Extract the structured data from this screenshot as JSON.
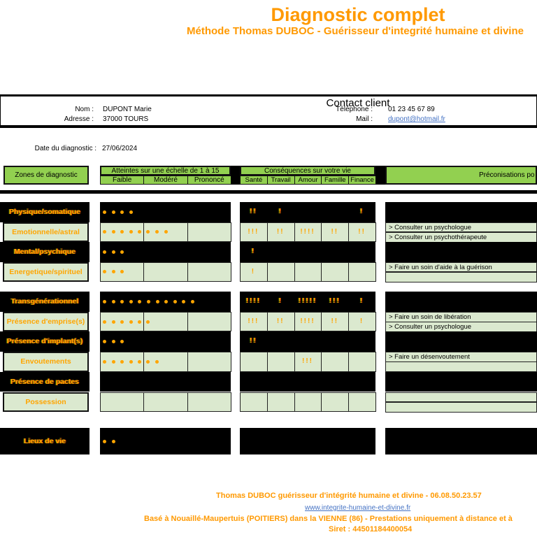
{
  "title": "Diagnostic complet",
  "subtitle": "Méthode Thomas DUBOC - Guérisseur d'integrité humaine et divine",
  "contact": {
    "header": "Contact client",
    "nom_label": "Nom :",
    "nom_value": "DUPONT Marie",
    "adresse_label": "Adresse :",
    "adresse_value": "37000 TOURS",
    "tel_label": "Téléphone :",
    "tel_value": "01 23 45 67 89",
    "mail_label": "Mail :",
    "mail_value": "dupont@hotmail.fr"
  },
  "date_label": "Date du diagnostic :",
  "date_value": "27/06/2024",
  "table": {
    "zones_header": "Zones de diagnostic",
    "scale_header": "Atteintes sur une échelle de 1 à 15",
    "scale_cols": [
      "Faible",
      "Modéré",
      "Prononcé"
    ],
    "consequences_header": "Conséquences sur votre vie",
    "consequence_cols": [
      "Santé",
      "Travail",
      "Amour",
      "Famille",
      "Finance"
    ],
    "precon_header": "Préconisations po"
  },
  "blocks": [
    {
      "rows": [
        {
          "label": "Physique/somatique",
          "style": "black",
          "dots_total": 4,
          "cons": [
            "!!",
            "!",
            "",
            "",
            "!"
          ],
          "precons": null
        },
        {
          "label": "Emotionnelle/astral",
          "style": "green",
          "dots": [
            5,
            3,
            0
          ],
          "cons": [
            "!!!",
            "!!",
            "!!!!",
            "!!",
            "!!"
          ],
          "precons": [
            "> Consulter un psychologue",
            "> Consulter un psychothérapeute"
          ]
        },
        {
          "label": "Mental/psychique",
          "style": "black",
          "dots_total": 3,
          "cons": [
            "!",
            "",
            "",
            "",
            ""
          ],
          "precons": null
        },
        {
          "label": "Energetique/spirituel",
          "style": "green",
          "dots": [
            3,
            0,
            0
          ],
          "cons": [
            "!",
            "",
            "",
            "",
            ""
          ],
          "precons": [
            "> Faire un soin d'aide à la guérison",
            ""
          ]
        }
      ]
    },
    {
      "rows": [
        {
          "label": "Transgénérationnel",
          "style": "black",
          "dots_total": 11,
          "cons": [
            "!!!!",
            "!",
            "!!!!!",
            "!!!",
            "!"
          ],
          "precons": null
        },
        {
          "label": "Présence d'emprise(s)",
          "style": "green",
          "dots": [
            5,
            1,
            0
          ],
          "cons": [
            "!!!",
            "!!",
            "!!!!",
            "!!",
            "!"
          ],
          "precons": [
            "> Faire un soin de libération",
            "> Consulter un psychologue"
          ]
        },
        {
          "label": "Présence d'implant(s)",
          "style": "black",
          "dots_total": 3,
          "cons": [
            "!!",
            "",
            "",
            "",
            ""
          ],
          "precons": null
        },
        {
          "label": "Envoutements",
          "style": "green",
          "dots": [
            5,
            2,
            0
          ],
          "cons": [
            "",
            "",
            "!!!",
            "",
            ""
          ],
          "precons": [
            "> Faire un désenvoutement",
            ""
          ]
        },
        {
          "label": "Présence de pactes",
          "style": "black",
          "dots_total": 0,
          "cons": [
            "",
            "",
            "",
            "",
            ""
          ],
          "precons": null
        },
        {
          "label": "Possession",
          "style": "green",
          "dots": [
            0,
            0,
            0
          ],
          "cons": [
            "",
            "",
            "",
            "",
            ""
          ],
          "precons": [
            "",
            ""
          ]
        }
      ]
    },
    {
      "rows": [
        {
          "label": "Lieux de vie",
          "style": "black",
          "dots_total": 2,
          "cons": [
            "",
            "",
            "",
            "",
            ""
          ],
          "precons": null
        }
      ]
    }
  ],
  "footer": {
    "line1": "Thomas DUBOC guérisseur d'intégrité humaine et divine - 06.08.50.23.57",
    "line2": "www.integrite-humaine-et-divine.fr",
    "line3": "Basé à Nouaillé-Maupertuis (POITIERS) dans la VIENNE (86) - Prestations uniquement à distance et à",
    "line4": "Siret : 44501184400054"
  },
  "colors": {
    "accent_orange": "#FF9900",
    "table_orange": "#FFA500",
    "header_green": "#92D050",
    "cell_green": "#DBE9CF",
    "link_blue": "#4472C4"
  }
}
